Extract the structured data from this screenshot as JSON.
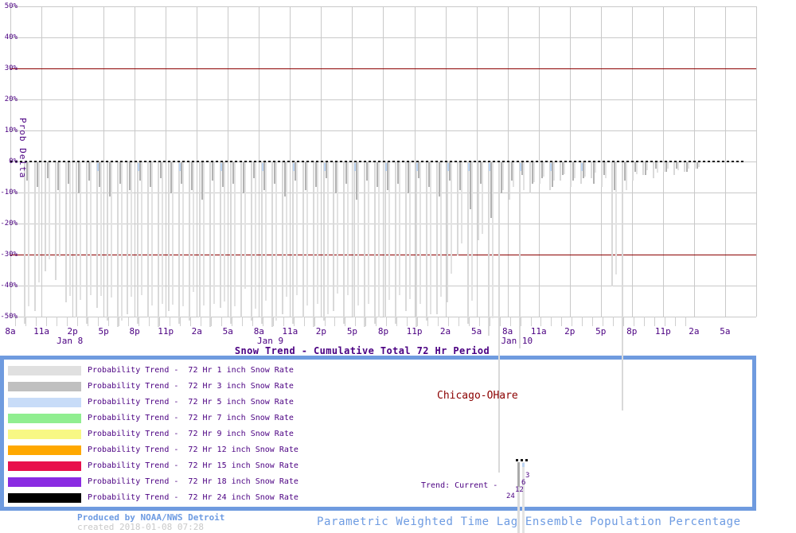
{
  "colors": {
    "accent_purple": "#4b0082",
    "dark_red": "#8b0000",
    "grid_gray": "#c9c9c9",
    "legend_border_blue": "#6f9bdf",
    "footer_blue": "#6d9be2",
    "bar_light_gray": "#d9d9d9",
    "bar_medium_gray": "#b2b2b2",
    "bar_light_blue": "#bcd4f2"
  },
  "chart_data": {
    "type": "bar",
    "title": "Snow Trend - Cumulative Total 72 Hr Period",
    "ylabel": "Prob Delta",
    "ylim": [
      -50,
      50
    ],
    "grid": true,
    "zero_line_style": "dashed-black",
    "threshold_lines_pct": [
      30,
      -30
    ],
    "y_ticks": [
      "50%",
      "40%",
      "30%",
      "20%",
      "10%",
      "0%",
      "-10%",
      "-20%",
      "-30%",
      "-40%",
      "-50%"
    ],
    "x_ticks": [
      "8a",
      "11a",
      "2p",
      "5p",
      "8p",
      "11p",
      "2a",
      "5a",
      "8a",
      "11a",
      "2p",
      "5p",
      "8p",
      "11p",
      "2a",
      "5a",
      "8a",
      "11a",
      "2p",
      "5p",
      "8p",
      "11p",
      "2a",
      "5a"
    ],
    "x_interval_hours": 3,
    "date_labels": [
      {
        "label": "Jan 8",
        "tick_index": 1.9
      },
      {
        "label": "Jan 9",
        "tick_index": 8.35
      },
      {
        "label": "Jan 10",
        "tick_index": 16.2
      }
    ],
    "series": [
      {
        "name": "72 Hr 1 inch Snow Rate",
        "color": "#d9d9d9",
        "values": [
          0,
          -52,
          -48,
          -35,
          -38,
          -45,
          -50,
          -52,
          -47,
          -51,
          -53,
          -49,
          -52,
          -50,
          -53,
          -48,
          -52,
          -51,
          -50,
          -53,
          -47,
          -52,
          -50,
          -51,
          -52,
          -53,
          -49,
          -52,
          -50,
          -53,
          -51,
          -48,
          -52,
          -50,
          -53,
          -52,
          -50,
          -52,
          -48,
          -53,
          -51,
          -49,
          -45,
          -30,
          -52,
          -25,
          -56,
          -100,
          -12,
          -60,
          -10,
          -7,
          -9,
          -6,
          -8,
          -7,
          -5,
          -8,
          -40,
          -80,
          -6,
          -4,
          -5,
          -3,
          -4,
          -3,
          -2,
          0,
          0,
          0,
          0,
          0
        ]
      },
      {
        "name": "72 Hr 3 inch Snow Rate",
        "color": "#b2b2b2",
        "values": [
          0,
          -6,
          -8,
          -5,
          -9,
          -7,
          -10,
          -6,
          -8,
          -11,
          -7,
          -9,
          -6,
          -8,
          -5,
          -10,
          -7,
          -9,
          -12,
          -6,
          -8,
          -7,
          -10,
          -5,
          -9,
          -7,
          -11,
          -6,
          -9,
          -8,
          -5,
          -10,
          -7,
          -12,
          -6,
          -8,
          -9,
          -7,
          -10,
          -5,
          -8,
          -11,
          -6,
          -9,
          -15,
          -7,
          -18,
          -10,
          -6,
          -4,
          -7,
          -5,
          -8,
          -4,
          -6,
          -5,
          -7,
          -4,
          -9,
          -6,
          -3,
          -4,
          -2,
          -3,
          -2,
          -3,
          -2,
          0,
          0,
          0,
          0,
          0
        ]
      },
      {
        "name": "72 Hr 5 inch Snow Rate",
        "color": "#bcd4f2",
        "values": [
          0,
          0,
          0,
          0,
          0,
          0,
          0,
          0,
          -2,
          0,
          0,
          0,
          -2,
          0,
          0,
          0,
          -2,
          0,
          0,
          0,
          -2,
          0,
          0,
          0,
          -2,
          0,
          0,
          -2,
          0,
          0,
          -2,
          0,
          0,
          -2,
          0,
          0,
          -2,
          0,
          0,
          -2,
          0,
          0,
          -2,
          0,
          -2,
          0,
          -2,
          0,
          0,
          -2,
          0,
          0,
          -2,
          0,
          0,
          -2,
          0,
          0,
          0,
          0,
          0,
          0,
          0,
          0,
          0,
          0,
          0,
          0,
          0,
          0,
          0,
          0
        ]
      }
    ]
  },
  "legend": {
    "items": [
      {
        "color": "#e0e0e0",
        "label": "Probability Trend -  72 Hr 1 inch Snow Rate"
      },
      {
        "color": "#c0c0c0",
        "label": "Probability Trend -  72 Hr 3 inch Snow Rate"
      },
      {
        "color": "#c8dcf8",
        "label": "Probability Trend -  72 Hr 5 inch Snow Rate"
      },
      {
        "color": "#90ee90",
        "label": "Probability Trend -  72 Hr 7 inch Snow Rate"
      },
      {
        "color": "#f8f884",
        "label": "Probability Trend -  72 Hr 9 inch Snow Rate"
      },
      {
        "color": "#ffa800",
        "label": "Probability Trend -  72 Hr 12 inch Snow Rate"
      },
      {
        "color": "#e8104c",
        "label": "Probability Trend -  72 Hr 15 inch Snow Rate"
      },
      {
        "color": "#8a2be2",
        "label": "Probability Trend -  72 Hr 18 inch Snow Rate"
      },
      {
        "color": "#000000",
        "label": "Probability Trend -  72 Hr 24 inch Snow Rate"
      }
    ]
  },
  "station": {
    "name": "Chicago-OHare"
  },
  "trend": {
    "label": "Trend: Current - ",
    "mini_labels": [
      "3",
      "6",
      "12",
      "24"
    ]
  },
  "footer": {
    "produced_by": "Produced by NOAA/NWS Detroit",
    "created": "created 2018-01-08 07:28",
    "subtitle": "Parametric Weighted Time Lag Ensemble Population Percentage"
  }
}
